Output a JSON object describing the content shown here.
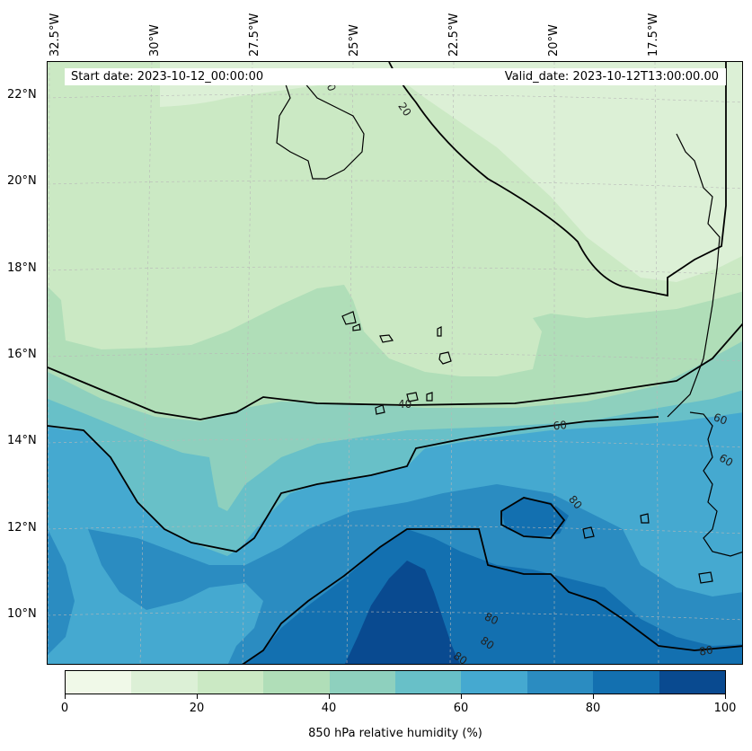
{
  "header": {
    "start_date": "Start date: 2023-10-12_00:00:00",
    "valid_date": "Valid_date: 2023-10-12T13:00:00.00"
  },
  "longitude_labels": [
    "32.5°W",
    "30°W",
    "27.5°W",
    "25°W",
    "22.5°W",
    "20°W",
    "17.5°W"
  ],
  "latitude_labels": [
    "22°N",
    "20°N",
    "18°N",
    "16°N",
    "14°N",
    "12°N",
    "10°N"
  ],
  "contour_labels": [
    "0",
    "20",
    "40",
    "60",
    "60",
    "60",
    "80",
    "80",
    "80",
    "80",
    "80"
  ],
  "colorbar": {
    "label": "850 hPa relative humidity (%)",
    "ticks": [
      "0",
      "20",
      "40",
      "60",
      "80",
      "100"
    ],
    "colors": [
      "#f0f9e8",
      "#dcf0d6",
      "#cbe9c4",
      "#b0deb8",
      "#8ed0be",
      "#68c0c8",
      "#45a9d0",
      "#2b8cc1",
      "#1370b0",
      "#094a90"
    ]
  },
  "colors": {
    "land_outline": "#000000",
    "grid": "#b8b8b8"
  }
}
